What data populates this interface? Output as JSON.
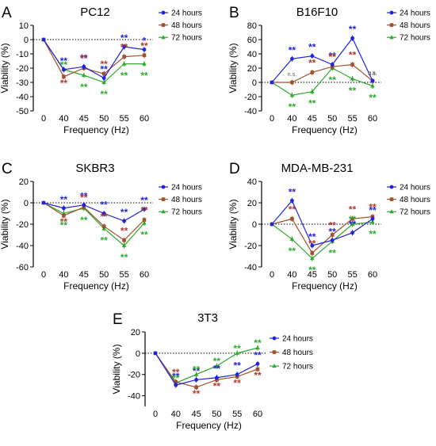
{
  "figure": {
    "colors": {
      "24 hours": "#2222dd",
      "48 hours": "#a0522d",
      "72 hours": "#2eaa2e"
    },
    "sig_colors": {
      "24 hours": "#2222dd",
      "48 hours": "#b03a2e",
      "72 hours": "#2eaa2e"
    }
  },
  "chart_data": [
    {
      "panel": "A",
      "title": "PC12",
      "type": "line",
      "xlabel": "Frequency (Hz)",
      "ylabel": "Viability (%)",
      "categories": [
        "0",
        "40",
        "45",
        "50",
        "55",
        "60"
      ],
      "ylim": [
        -50,
        10
      ],
      "yticks": [
        10,
        0,
        -10,
        -20,
        -30,
        -40,
        -50
      ],
      "legend": [
        "24 hours",
        "48 hours",
        "72 hours"
      ],
      "series": [
        {
          "name": "24 hours",
          "values": [
            0,
            -21,
            -19,
            -27,
            -5,
            -7
          ]
        },
        {
          "name": "48 hours",
          "values": [
            0,
            -26,
            -20,
            -24,
            -12,
            -11
          ]
        },
        {
          "name": "72 hours",
          "values": [
            0,
            -21,
            -25,
            -30,
            -17,
            -17
          ]
        }
      ],
      "significance": [
        {
          "series": "24 hours",
          "labels": [
            "",
            "**",
            "**",
            "**",
            "**",
            "*"
          ]
        },
        {
          "series": "48 hours",
          "labels": [
            "",
            "**",
            "**",
            "**",
            "**",
            "**"
          ]
        },
        {
          "series": "72 hours",
          "labels": [
            "",
            "**",
            "**",
            "**",
            "**",
            "**"
          ]
        }
      ]
    },
    {
      "panel": "B",
      "title": "B16F10",
      "type": "line",
      "xlabel": "Frequency (Hz)",
      "ylabel": "Viability (%)",
      "categories": [
        "0",
        "40",
        "45",
        "50",
        "55",
        "60"
      ],
      "ylim": [
        -40,
        80
      ],
      "yticks": [
        80,
        60,
        40,
        20,
        0,
        -20,
        -40
      ],
      "legend": [
        "24 hours",
        "48 hours",
        "72 hours"
      ],
      "series": [
        {
          "name": "24 hours",
          "values": [
            0,
            33,
            37,
            25,
            62,
            2
          ]
        },
        {
          "name": "48 hours",
          "values": [
            0,
            0,
            14,
            22,
            25,
            2
          ]
        },
        {
          "name": "72 hours",
          "values": [
            0,
            -18,
            -13,
            20,
            5,
            -5
          ]
        }
      ],
      "significance": [
        {
          "series": "24 hours",
          "labels": [
            "",
            "**",
            "**",
            "**",
            "**",
            "n.s."
          ]
        },
        {
          "series": "48 hours",
          "labels": [
            "",
            "n.s.",
            "**",
            "**",
            "**",
            "n.s."
          ]
        },
        {
          "series": "72 hours",
          "labels": [
            "",
            "**",
            "**",
            "**",
            "**",
            "**"
          ]
        }
      ]
    },
    {
      "panel": "C",
      "title": "SKBR3",
      "type": "line",
      "xlabel": "Frequency (Hz)",
      "ylabel": "Viability (%)",
      "categories": [
        "0",
        "40",
        "45",
        "50",
        "55",
        "60"
      ],
      "ylim": [
        -60,
        20
      ],
      "yticks": [
        20,
        0,
        -20,
        -40,
        -60
      ],
      "legend": [
        "24 hours",
        "48 hours",
        "72 hours"
      ],
      "series": [
        {
          "name": "24 hours",
          "values": [
            0,
            -5,
            -2,
            -10,
            -17,
            -6
          ]
        },
        {
          "name": "48 hours",
          "values": [
            0,
            -12,
            -4,
            -22,
            -35,
            -16
          ]
        },
        {
          "name": "72 hours",
          "values": [
            0,
            -10,
            -5,
            -24,
            -40,
            -19
          ]
        }
      ],
      "significance": [
        {
          "series": "24 hours",
          "labels": [
            "",
            "**",
            "**",
            "**",
            "**",
            "**"
          ]
        },
        {
          "series": "48 hours",
          "labels": [
            "",
            "**",
            "**",
            "**",
            "**",
            "**"
          ]
        },
        {
          "series": "72 hours",
          "labels": [
            "",
            "**",
            "**",
            "**",
            "**",
            "**"
          ]
        }
      ]
    },
    {
      "panel": "D",
      "title": "MDA-MB-231",
      "type": "line",
      "xlabel": "Frequency (Hz)",
      "ylabel": "Viability (%)",
      "categories": [
        "0",
        "40",
        "45",
        "50",
        "55",
        "60"
      ],
      "ylim": [
        -40,
        40
      ],
      "yticks": [
        40,
        20,
        0,
        -20,
        -40
      ],
      "legend": [
        "24 hours",
        "48 hours",
        "72 hours"
      ],
      "series": [
        {
          "name": "24 hours",
          "values": [
            0,
            22,
            -20,
            -15,
            -8,
            5
          ]
        },
        {
          "name": "48 hours",
          "values": [
            0,
            5,
            -27,
            -10,
            5,
            7
          ]
        },
        {
          "name": "72 hours",
          "values": [
            0,
            -14,
            -32,
            -16,
            0,
            2
          ]
        }
      ],
      "significance": [
        {
          "series": "24 hours",
          "labels": [
            "",
            "**",
            "**",
            "**",
            "**",
            "**"
          ]
        },
        {
          "series": "48 hours",
          "labels": [
            "",
            "**",
            "**",
            "**",
            "**",
            "**"
          ]
        },
        {
          "series": "72 hours",
          "labels": [
            "",
            "**",
            "**",
            "**",
            "**",
            "**"
          ]
        }
      ]
    },
    {
      "panel": "E",
      "title": "3T3",
      "type": "line",
      "xlabel": "Frequency (Hz)",
      "ylabel": "Viability (%)",
      "categories": [
        "0",
        "40",
        "45",
        "50",
        "55",
        "60"
      ],
      "ylim": [
        -50,
        20
      ],
      "yticks": [
        20,
        0,
        -20,
        -40
      ],
      "legend": [
        "24 hours",
        "48 hours",
        "72 hours"
      ],
      "series": [
        {
          "name": "24 hours",
          "values": [
            0,
            -30,
            -25,
            -23,
            -20,
            -10
          ]
        },
        {
          "name": "48 hours",
          "values": [
            0,
            -27,
            -32,
            -25,
            -22,
            -15
          ]
        },
        {
          "name": "72 hours",
          "values": [
            0,
            -28,
            -20,
            -12,
            0,
            5
          ]
        }
      ],
      "significance": [
        {
          "series": "24 hours",
          "labels": [
            "",
            "**",
            "**",
            "**",
            "**",
            "**"
          ]
        },
        {
          "series": "48 hours",
          "labels": [
            "",
            "**",
            "**",
            "**",
            "**",
            "**"
          ]
        },
        {
          "series": "72 hours",
          "labels": [
            "",
            "**",
            "**",
            "**",
            "**",
            "**"
          ]
        }
      ]
    }
  ]
}
